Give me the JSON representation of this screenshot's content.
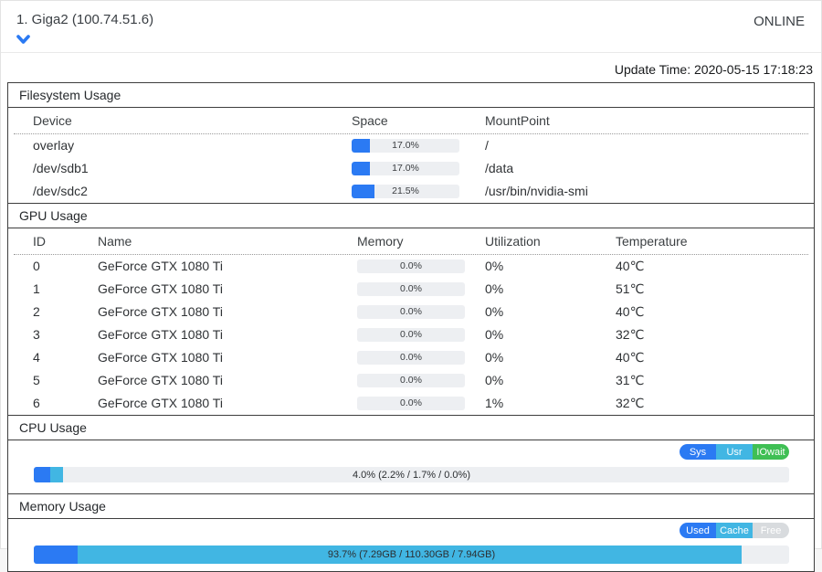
{
  "header": {
    "title": "1. Giga2 (100.74.51.6)",
    "status": "ONLINE"
  },
  "update_time": "Update Time: 2020-05-15 17:18:23",
  "colors": {
    "accent_blue": "#2b7af3",
    "accent_cyan": "#41b6e3",
    "accent_green": "#3fbf54",
    "free_gray": "#d8dbde",
    "track_gray": "#edeff2"
  },
  "filesystem": {
    "title": "Filesystem Usage",
    "columns": {
      "device": "Device",
      "space": "Space",
      "mount": "MountPoint"
    },
    "rows": [
      {
        "device": "overlay",
        "space": "17.0%",
        "space_value": 17.0,
        "mount": "/"
      },
      {
        "device": "/dev/sdb1",
        "space": "17.0%",
        "space_value": 17.0,
        "mount": "/data"
      },
      {
        "device": "/dev/sdc2",
        "space": "21.5%",
        "space_value": 21.5,
        "mount": "/usr/bin/nvidia-smi"
      }
    ]
  },
  "gpu": {
    "title": "GPU Usage",
    "columns": {
      "id": "ID",
      "name": "Name",
      "memory": "Memory",
      "utilization": "Utilization",
      "temperature": "Temperature"
    },
    "rows": [
      {
        "id": "0",
        "name": "GeForce GTX 1080 Ti",
        "memory": "0.0%",
        "memory_value": 0,
        "utilization": "0%",
        "temperature": "40℃"
      },
      {
        "id": "1",
        "name": "GeForce GTX 1080 Ti",
        "memory": "0.0%",
        "memory_value": 0,
        "utilization": "0%",
        "temperature": "51℃"
      },
      {
        "id": "2",
        "name": "GeForce GTX 1080 Ti",
        "memory": "0.0%",
        "memory_value": 0,
        "utilization": "0%",
        "temperature": "40℃"
      },
      {
        "id": "3",
        "name": "GeForce GTX 1080 Ti",
        "memory": "0.0%",
        "memory_value": 0,
        "utilization": "0%",
        "temperature": "32℃"
      },
      {
        "id": "4",
        "name": "GeForce GTX 1080 Ti",
        "memory": "0.0%",
        "memory_value": 0,
        "utilization": "0%",
        "temperature": "40℃"
      },
      {
        "id": "5",
        "name": "GeForce GTX 1080 Ti",
        "memory": "0.0%",
        "memory_value": 0,
        "utilization": "0%",
        "temperature": "31℃"
      },
      {
        "id": "6",
        "name": "GeForce GTX 1080 Ti",
        "memory": "0.0%",
        "memory_value": 0,
        "utilization": "1%",
        "temperature": "32℃"
      }
    ]
  },
  "cpu": {
    "title": "CPU Usage",
    "legend": [
      {
        "name": "sys",
        "label": "Sys",
        "color": "#2b7af3"
      },
      {
        "name": "usr",
        "label": "Usr",
        "color": "#41b6e3"
      },
      {
        "name": "iowait",
        "label": "IOwait",
        "color": "#3fbf54"
      }
    ],
    "bar_label": "4.0% (2.2% / 1.7% / 0.0%)",
    "segments": [
      {
        "name": "sys",
        "pct": 2.2,
        "color": "#2b7af3"
      },
      {
        "name": "usr",
        "pct": 1.7,
        "color": "#41b6e3"
      },
      {
        "name": "iowait",
        "pct": 0.0,
        "color": "#3fbf54"
      }
    ]
  },
  "memory": {
    "title": "Memory Usage",
    "legend": [
      {
        "name": "used",
        "label": "Used",
        "color": "#2b7af3"
      },
      {
        "name": "cache",
        "label": "Cache",
        "color": "#41b6e3"
      },
      {
        "name": "free",
        "label": "Free",
        "color": "#d8dbde"
      }
    ],
    "bar_label": "93.7% (7.29GB / 110.30GB / 7.94GB)",
    "segments": [
      {
        "name": "used",
        "pct": 5.8,
        "color": "#2b7af3"
      },
      {
        "name": "cache",
        "pct": 87.9,
        "color": "#41b6e3"
      }
    ]
  }
}
